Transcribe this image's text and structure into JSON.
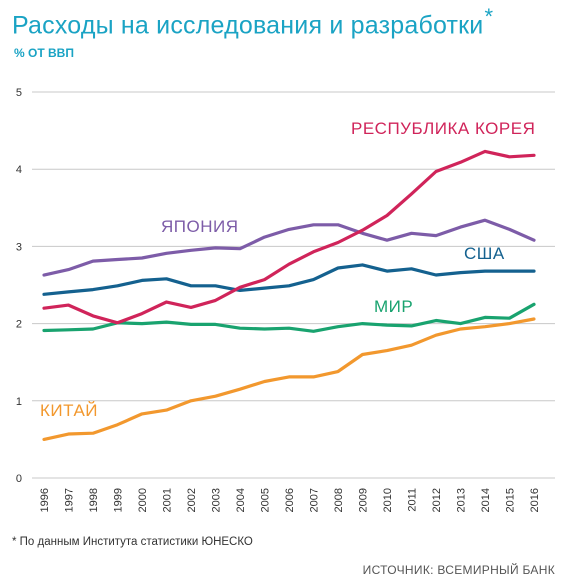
{
  "header": {
    "title": "Расходы на исследования и разработки",
    "title_mark": "*",
    "subtitle": "% ОТ ВВП"
  },
  "footer": {
    "footnote": "* По данным Института статистики ЮНЕСКО",
    "source": "ИСТОЧНИК: ВСЕМИРНЫЙ БАНК"
  },
  "colors": {
    "title": "#1aa3c4",
    "grid": "#c8c8c8"
  },
  "chart_data": {
    "type": "line",
    "title": "Расходы на исследования и разработки",
    "ylabel": "% ОТ ВВП",
    "xlabel": "",
    "x": [
      1996,
      1997,
      1998,
      1999,
      2000,
      2001,
      2002,
      2003,
      2004,
      2005,
      2006,
      2007,
      2008,
      2009,
      2010,
      2011,
      2012,
      2013,
      2014,
      2015,
      2016
    ],
    "ylim": [
      0,
      5
    ],
    "yticks": [
      0,
      1,
      2,
      3,
      4,
      5
    ],
    "grid": true,
    "legend": "inline labels",
    "series": [
      {
        "name": "РЕСПУБЛИКА КОРЕЯ",
        "color": "#d0245a",
        "values": [
          2.2,
          2.24,
          2.1,
          2.01,
          2.13,
          2.28,
          2.21,
          2.3,
          2.47,
          2.57,
          2.77,
          2.93,
          3.05,
          3.21,
          3.4,
          3.68,
          3.97,
          4.09,
          4.23,
          4.16,
          4.18
        ]
      },
      {
        "name": "ЯПОНИЯ",
        "color": "#7d5ca8",
        "values": [
          2.63,
          2.7,
          2.81,
          2.83,
          2.85,
          2.91,
          2.95,
          2.98,
          2.97,
          3.12,
          3.22,
          3.28,
          3.28,
          3.17,
          3.08,
          3.17,
          3.14,
          3.25,
          3.34,
          3.22,
          3.08
        ]
      },
      {
        "name": "США",
        "color": "#14618f",
        "values": [
          2.38,
          2.41,
          2.44,
          2.49,
          2.56,
          2.58,
          2.49,
          2.49,
          2.43,
          2.46,
          2.49,
          2.57,
          2.72,
          2.76,
          2.68,
          2.71,
          2.63,
          2.66,
          2.68,
          2.68,
          2.68
        ]
      },
      {
        "name": "МИР",
        "color": "#19a36f",
        "values": [
          1.91,
          1.92,
          1.93,
          2.01,
          2.0,
          2.02,
          1.99,
          1.99,
          1.94,
          1.93,
          1.94,
          1.9,
          1.96,
          2.0,
          1.98,
          1.97,
          2.04,
          2.0,
          2.08,
          2.07,
          2.25
        ]
      },
      {
        "name": "КИТАЙ",
        "color": "#f2982e",
        "values": [
          0.5,
          0.57,
          0.58,
          0.69,
          0.83,
          0.88,
          1.0,
          1.06,
          1.15,
          1.25,
          1.31,
          1.31,
          1.38,
          1.6,
          1.65,
          1.72,
          1.85,
          1.93,
          1.96,
          2.0,
          2.06
        ]
      }
    ]
  }
}
